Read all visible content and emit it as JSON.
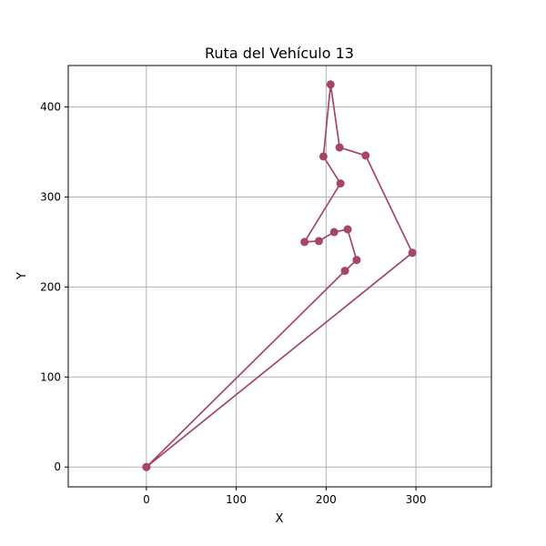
{
  "chart_data": {
    "type": "line",
    "title": "Ruta del Vehículo 13",
    "xlabel": "X",
    "ylabel": "Y",
    "xlim": [
      -87,
      384
    ],
    "ylim": [
      -22,
      446
    ],
    "xticks": [
      0,
      100,
      200,
      300
    ],
    "yticks": [
      0,
      100,
      200,
      300,
      400
    ],
    "xtick_labels": [
      "0",
      "100",
      "200",
      "300"
    ],
    "ytick_labels": [
      "0",
      "100",
      "200",
      "300",
      "400"
    ],
    "grid": true,
    "legend": false,
    "series": [
      {
        "color": "#a64664",
        "marker": "circle",
        "x": [
          0,
          296,
          244,
          215,
          205,
          197,
          216,
          176,
          192,
          209,
          224,
          234,
          221,
          0
        ],
        "y": [
          0,
          238,
          346,
          355,
          425,
          345,
          315,
          250,
          251,
          261,
          264,
          230,
          218,
          0
        ]
      }
    ]
  }
}
